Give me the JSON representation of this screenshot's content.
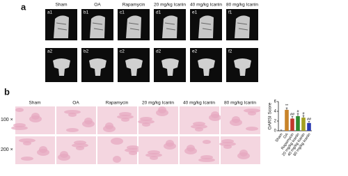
{
  "panel_a": {
    "label": "a",
    "columns": [
      "Sham",
      "OA",
      "Rapamycin",
      "20 mg/kg  Icariin",
      "40 mg/kg  Icariin",
      "80 mg/kg  Icariin"
    ],
    "row1": [
      "a1",
      "b1",
      "c1",
      "d1",
      "e1",
      "f1"
    ],
    "row2": [
      "a2",
      "b2",
      "c2",
      "d2",
      "e2",
      "f2"
    ]
  },
  "panel_b": {
    "label": "b",
    "columns": [
      "Sham",
      "OA",
      "Rapamycin",
      "20 mg/kg Icariin",
      "40 mg/kg Icariin",
      "80 mg/kg Icariin"
    ],
    "rows": [
      "100 ×",
      "200 ×"
    ]
  },
  "chart_data": {
    "type": "bar",
    "ylabel": "OARSI Score",
    "categories": [
      "Sham",
      "OA",
      "Rapamycin",
      "20 mg/kg Icariin",
      "40 mg/kg Icariin",
      "80 mg/kg Icariin"
    ],
    "values": [
      0.1,
      4.3,
      2.5,
      3.0,
      2.7,
      1.6
    ],
    "errors": [
      0.05,
      0.4,
      0.4,
      0.5,
      0.4,
      0.3
    ],
    "significance": [
      null,
      "**",
      "##",
      "#",
      "#",
      "##"
    ],
    "colors": [
      "#888888",
      "#c8842a",
      "#c0392b",
      "#2e8b2e",
      "#a4a020",
      "#2b3bb0"
    ],
    "ylim": [
      0,
      6
    ],
    "yticks": [
      0,
      2,
      4,
      6
    ]
  }
}
